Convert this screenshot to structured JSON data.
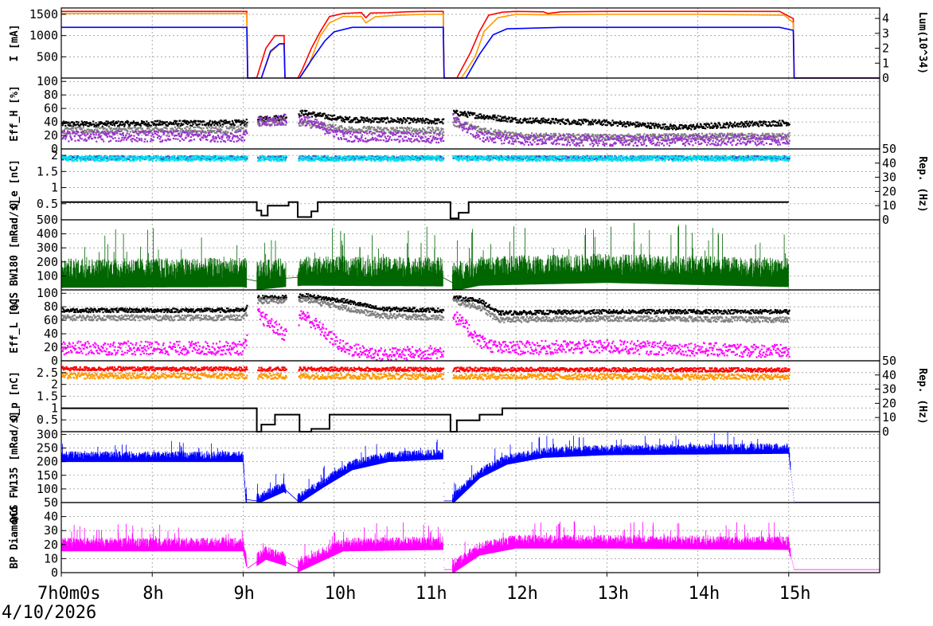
{
  "date_label": "4/10/2026",
  "time_axis": {
    "start_hour": 7,
    "end_hour": 16,
    "tick_labels": [
      "7h0m0s",
      "8h",
      "9h",
      "10h",
      "11h",
      "12h",
      "13h",
      "14h",
      "15h"
    ]
  },
  "chart_data": [
    {
      "type": "line",
      "ylabel": "I [mA]",
      "ylabel_right": "Lum(10^34)",
      "ylim": [
        0,
        1650
      ],
      "yticks": [
        500,
        1000,
        1500
      ],
      "ylim_right": [
        0,
        4.7
      ],
      "yticks_right": [
        0,
        1,
        2,
        3,
        4
      ],
      "grid": true,
      "series": [
        {
          "color": "#ff0000",
          "axis": "left",
          "x": [
            7.0,
            9.04,
            9.05,
            9.15,
            9.25,
            9.35,
            9.45,
            9.46,
            9.6,
            9.65,
            9.75,
            9.85,
            9.95,
            10.1,
            10.3,
            10.35,
            10.4,
            10.6,
            10.8,
            11.0,
            11.2,
            11.21,
            11.35,
            11.5,
            11.6,
            11.7,
            11.85,
            12.0,
            12.3,
            12.35,
            12.5,
            13.0,
            14.0,
            14.9,
            15.05,
            15.06,
            16.0
          ],
          "y": [
            1570,
            1570,
            0,
            10,
            700,
            1000,
            1000,
            0,
            0,
            200,
            700,
            1100,
            1450,
            1520,
            1540,
            1420,
            1530,
            1540,
            1560,
            1570,
            1570,
            0,
            0,
            600,
            1100,
            1480,
            1550,
            1570,
            1560,
            1520,
            1560,
            1570,
            1570,
            1570,
            1400,
            0,
            0
          ]
        },
        {
          "color": "#ff9900",
          "axis": "left",
          "x": [
            7.0,
            9.04,
            9.05,
            9.2,
            9.3,
            9.4,
            9.45,
            9.46,
            9.62,
            9.72,
            9.85,
            9.95,
            10.1,
            10.3,
            10.35,
            10.45,
            10.7,
            11.0,
            11.2,
            11.21,
            11.4,
            11.55,
            11.65,
            11.8,
            12.0,
            12.3,
            13.0,
            14.0,
            14.95,
            15.05,
            15.06,
            16.0
          ],
          "y": [
            1520,
            1520,
            0,
            0,
            600,
            800,
            800,
            0,
            0,
            300,
            1000,
            1300,
            1450,
            1450,
            1300,
            1440,
            1480,
            1500,
            1500,
            0,
            0,
            500,
            1100,
            1420,
            1500,
            1490,
            1500,
            1500,
            1480,
            1300,
            0,
            0
          ]
        },
        {
          "color": "#0000ff",
          "axis": "right",
          "x": [
            7.0,
            9.04,
            9.05,
            9.2,
            9.3,
            9.4,
            9.45,
            9.46,
            9.62,
            9.75,
            9.9,
            10.0,
            10.2,
            11.0,
            11.2,
            11.21,
            11.45,
            11.6,
            11.75,
            11.9,
            12.5,
            14.9,
            15.05,
            15.06,
            16.0
          ],
          "y": [
            3.4,
            3.4,
            0,
            0,
            1.8,
            2.3,
            2.3,
            0,
            0,
            1.2,
            2.5,
            3.1,
            3.4,
            3.4,
            3.4,
            0,
            0,
            1.6,
            2.9,
            3.3,
            3.4,
            3.4,
            3.2,
            0,
            0
          ]
        }
      ]
    },
    {
      "type": "scatter",
      "ylabel": "Eff_H [%]",
      "ylim": [
        0,
        105
      ],
      "yticks": [
        0,
        20,
        40,
        60,
        80,
        100
      ],
      "grid": true,
      "series": [
        {
          "color": "#000000",
          "mean": [
            [
              7.0,
              38
            ],
            [
              9.0,
              40
            ],
            [
              9.15,
              45
            ],
            [
              9.45,
              48
            ],
            [
              9.65,
              55
            ],
            [
              10.1,
              45
            ],
            [
              11.2,
              42
            ],
            [
              11.3,
              55
            ],
            [
              11.6,
              50
            ],
            [
              12.0,
              44
            ],
            [
              13.0,
              40
            ],
            [
              13.8,
              33
            ],
            [
              14.5,
              38
            ],
            [
              15.0,
              40
            ]
          ],
          "spread": 4
        },
        {
          "color": "#808080",
          "mean": [
            [
              7.0,
              28
            ],
            [
              9.0,
              30
            ],
            [
              9.15,
              40
            ],
            [
              9.45,
              42
            ],
            [
              9.65,
              40
            ],
            [
              10.1,
              30
            ],
            [
              11.2,
              28
            ],
            [
              11.3,
              40
            ],
            [
              11.6,
              30
            ],
            [
              12.0,
              20
            ],
            [
              13.0,
              18
            ],
            [
              15.0,
              20
            ]
          ],
          "spread": 5
        },
        {
          "color": "#9933cc",
          "mean": [
            [
              7.0,
              20
            ],
            [
              9.0,
              20
            ],
            [
              9.15,
              40
            ],
            [
              9.45,
              45
            ],
            [
              9.65,
              45
            ],
            [
              10.1,
              20
            ],
            [
              11.2,
              18
            ],
            [
              11.3,
              45
            ],
            [
              11.6,
              20
            ],
            [
              12.0,
              15
            ],
            [
              13.0,
              13
            ],
            [
              15.0,
              15
            ]
          ],
          "spread": 8
        }
      ]
    },
    {
      "type": "scatter",
      "ylabel": "Q_e [nC]",
      "ylabel_right": "Rep. (Hz)",
      "ylim": [
        0,
        2.2
      ],
      "yticks": [
        0.5,
        1,
        1.5,
        2
      ],
      "ylim_right": [
        0,
        50
      ],
      "yticks_right": [
        0,
        10,
        20,
        30,
        40,
        50
      ],
      "grid": true,
      "series": [
        {
          "color": "#3355cc",
          "mean": [
            [
              7.0,
              1.95
            ],
            [
              15.0,
              1.95
            ]
          ],
          "spread": 0.06
        },
        {
          "color": "#00e5ee",
          "mean": [
            [
              7.0,
              1.93
            ],
            [
              15.0,
              1.93
            ]
          ],
          "spread": 0.08
        },
        {
          "color": "#000000",
          "axis": "right",
          "step": true,
          "x": [
            7.0,
            9.15,
            9.2,
            9.27,
            9.5,
            9.6,
            9.75,
            9.82,
            11.2,
            11.28,
            11.37,
            11.48,
            15.0
          ],
          "y": [
            12.5,
            6.5,
            3,
            10,
            12.5,
            2,
            6,
            12.5,
            12.5,
            1,
            5,
            12.5,
            12.5
          ]
        }
      ]
    },
    {
      "type": "bar",
      "ylabel": "QCS BW180 [mRad/s]",
      "ylim": [
        0,
        500
      ],
      "yticks": [
        100,
        200,
        300,
        400,
        500
      ],
      "grid": true,
      "series": [
        {
          "color": "#006600",
          "mean": [
            [
              7.0,
              75
            ],
            [
              9.0,
              80
            ],
            [
              9.15,
              60
            ],
            [
              9.45,
              80
            ],
            [
              9.65,
              90
            ],
            [
              11.2,
              85
            ],
            [
              11.3,
              50
            ],
            [
              11.6,
              90
            ],
            [
              13.0,
              110
            ],
            [
              15.0,
              80
            ]
          ],
          "peak": 150
        }
      ]
    },
    {
      "type": "scatter",
      "ylabel": "Eff_L [%]",
      "ylim": [
        0,
        105
      ],
      "yticks": [
        0,
        20,
        40,
        60,
        80,
        100
      ],
      "grid": true,
      "series": [
        {
          "color": "#000000",
          "mean": [
            [
              7.0,
              76
            ],
            [
              9.0,
              76
            ],
            [
              9.15,
              95
            ],
            [
              9.45,
              95
            ],
            [
              9.65,
              98
            ],
            [
              10.1,
              90
            ],
            [
              10.5,
              78
            ],
            [
              11.2,
              76
            ],
            [
              11.3,
              95
            ],
            [
              11.6,
              90
            ],
            [
              11.8,
              72
            ],
            [
              13.0,
              74
            ],
            [
              15.0,
              74
            ]
          ],
          "spread": 3
        },
        {
          "color": "#808080",
          "mean": [
            [
              7.0,
              65
            ],
            [
              9.0,
              65
            ],
            [
              9.15,
              90
            ],
            [
              9.45,
              90
            ],
            [
              9.65,
              93
            ],
            [
              10.1,
              80
            ],
            [
              10.5,
              68
            ],
            [
              11.2,
              65
            ],
            [
              11.3,
              90
            ],
            [
              11.6,
              80
            ],
            [
              11.8,
              62
            ],
            [
              13.0,
              64
            ],
            [
              15.0,
              62
            ]
          ],
          "spread": 4
        },
        {
          "color": "#ff00ff",
          "mean": [
            [
              7.0,
              20
            ],
            [
              9.0,
              20
            ],
            [
              9.15,
              70
            ],
            [
              9.45,
              40
            ],
            [
              9.65,
              70
            ],
            [
              10.1,
              20
            ],
            [
              10.5,
              10
            ],
            [
              11.2,
              15
            ],
            [
              11.3,
              70
            ],
            [
              11.6,
              30
            ],
            [
              11.8,
              20
            ],
            [
              13.0,
              22
            ],
            [
              15.0,
              15
            ]
          ],
          "spread": 10
        }
      ]
    },
    {
      "type": "scatter",
      "ylabel": "Q_p [nC]",
      "ylabel_right": "Rep. (Hz)",
      "ylim": [
        0,
        3.0
      ],
      "yticks": [
        0.5,
        1,
        1.5,
        2,
        2.5
      ],
      "ylim_right": [
        0,
        50
      ],
      "yticks_right": [
        0,
        10,
        20,
        30,
        40,
        50
      ],
      "grid": true,
      "series": [
        {
          "color": "#ff0000",
          "mean": [
            [
              7.0,
              2.7
            ],
            [
              15.0,
              2.65
            ]
          ],
          "spread": 0.08
        },
        {
          "color": "#ff9900",
          "mean": [
            [
              7.0,
              2.4
            ],
            [
              15.0,
              2.35
            ]
          ],
          "spread": 0.12
        },
        {
          "color": "#000000",
          "axis": "right",
          "step": true,
          "x": [
            7.0,
            9.15,
            9.2,
            9.3,
            9.35,
            9.5,
            9.62,
            9.75,
            9.82,
            9.95,
            11.2,
            11.28,
            11.35,
            11.45,
            11.6,
            11.75,
            11.85,
            12.3,
            15.0
          ],
          "y": [
            16.5,
            0,
            5,
            5,
            12,
            12,
            0,
            2,
            2,
            12,
            12,
            0,
            8,
            8,
            12,
            12,
            16.5,
            16.5,
            16.5
          ]
        }
      ]
    },
    {
      "type": "bar",
      "ylabel": "QCS FW135 [mRad/s]",
      "ylim": [
        50,
        310
      ],
      "yticks": [
        50,
        100,
        150,
        200,
        250,
        300
      ],
      "grid": true,
      "series": [
        {
          "color": "#0000ff",
          "mean": [
            [
              7.0,
              210
            ],
            [
              9.0,
              210
            ],
            [
              9.03,
              60
            ],
            [
              9.15,
              55
            ],
            [
              9.45,
              100
            ],
            [
              9.6,
              55
            ],
            [
              9.9,
              120
            ],
            [
              10.2,
              180
            ],
            [
              10.6,
              210
            ],
            [
              11.2,
              220
            ],
            [
              11.21,
              55
            ],
            [
              11.3,
              55
            ],
            [
              11.6,
              150
            ],
            [
              11.9,
              200
            ],
            [
              12.3,
              225
            ],
            [
              13.0,
              235
            ],
            [
              15.0,
              240
            ],
            [
              15.06,
              50
            ],
            [
              16.0,
              50
            ]
          ],
          "peak": 28
        }
      ]
    },
    {
      "type": "bar",
      "ylabel": "BP Diamond",
      "ylim": [
        0,
        50
      ],
      "yticks": [
        0,
        10,
        20,
        30,
        40
      ],
      "grid": true,
      "series": [
        {
          "color": "#ff00ff",
          "mean": [
            [
              7.0,
              18
            ],
            [
              9.0,
              18
            ],
            [
              9.05,
              3
            ],
            [
              9.25,
              12
            ],
            [
              9.45,
              8
            ],
            [
              9.6,
              3
            ],
            [
              9.9,
              12
            ],
            [
              10.1,
              18
            ],
            [
              11.2,
              19
            ],
            [
              11.21,
              2
            ],
            [
              11.3,
              2
            ],
            [
              11.6,
              15
            ],
            [
              12.0,
              20
            ],
            [
              13.0,
              20
            ],
            [
              15.0,
              19
            ],
            [
              15.06,
              2
            ],
            [
              16.0,
              2
            ]
          ],
          "peak": 7
        }
      ]
    }
  ]
}
